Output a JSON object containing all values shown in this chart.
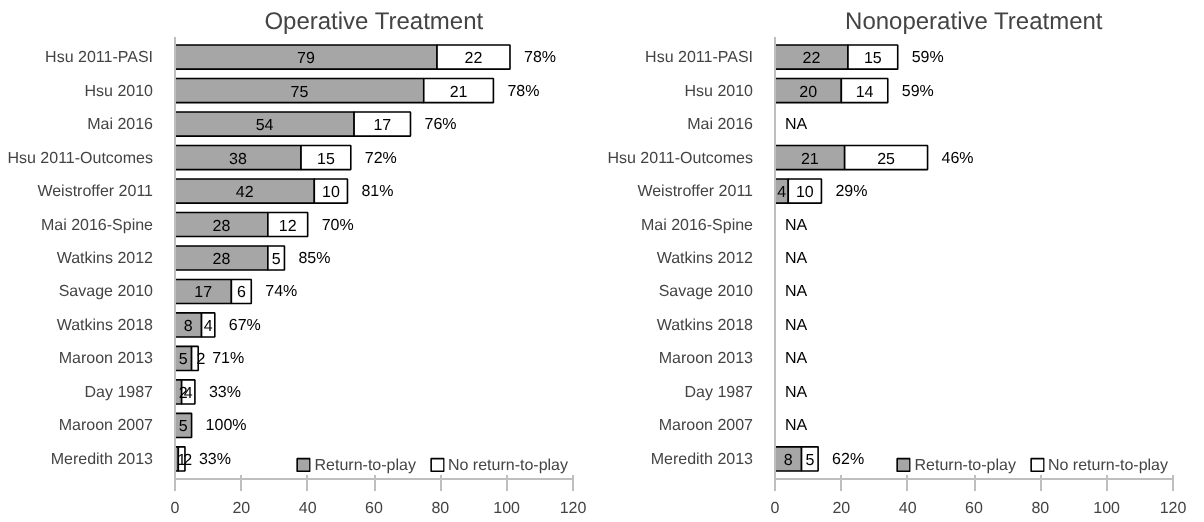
{
  "chart_data": [
    {
      "type": "bar",
      "orientation": "horizontal",
      "stacked": true,
      "title": "Operative Treatment",
      "categories": [
        "Hsu 2011-PASI",
        "Hsu 2010",
        "Mai 2016",
        "Hsu 2011-Outcomes",
        "Weistroffer 2011",
        "Mai 2016-Spine",
        "Watkins 2012",
        "Savage 2010",
        "Watkins 2018",
        "Maroon 2013",
        "Day 1987",
        "Maroon 2007",
        "Meredith 2013"
      ],
      "series": [
        {
          "name": "Return-to-play",
          "color": "#a6a6a6",
          "values": [
            79,
            75,
            54,
            38,
            42,
            28,
            28,
            17,
            8,
            5,
            2,
            5,
            1
          ],
          "value_labels": [
            "79",
            "75",
            "54",
            "38",
            "42",
            "28",
            "28",
            "17",
            "8",
            "5",
            "2",
            "5",
            "1"
          ]
        },
        {
          "name": "No return-to-play",
          "color": "#ffffff",
          "values": [
            22,
            21,
            17,
            15,
            10,
            12,
            5,
            6,
            4,
            2,
            4,
            null,
            2
          ],
          "value_labels": [
            "22",
            "21",
            "17",
            "15",
            "10",
            "12",
            "5",
            "6",
            "4",
            "2",
            "4",
            null,
            "2"
          ]
        }
      ],
      "xlim": [
        0,
        120
      ],
      "xticks": [
        0,
        20,
        40,
        60,
        80,
        100,
        120
      ],
      "legend": "bottom",
      "grid": false,
      "annotations": [
        {
          "text": "78%",
          "x": 101,
          "y": "Hsu 2011-PASI"
        },
        {
          "text": "78%",
          "x": 96,
          "y": "Hsu 2010"
        },
        {
          "text": "76%",
          "x": 71,
          "y": "Mai 2016"
        },
        {
          "text": "72%",
          "x": 53,
          "y": "Hsu 2011-Outcomes"
        },
        {
          "text": "81%",
          "x": 52,
          "y": "Weistroffer 2011"
        },
        {
          "text": "70%",
          "x": 40,
          "y": "Mai 2016-Spine"
        },
        {
          "text": "85%",
          "x": 33,
          "y": "Watkins 2012"
        },
        {
          "text": "74%",
          "x": 23,
          "y": "Savage 2010"
        },
        {
          "text": "67%",
          "x": 12,
          "y": "Watkins 2018"
        },
        {
          "text": "71%",
          "x": 7,
          "y": "Maroon 2013"
        },
        {
          "text": "33%",
          "x": 6,
          "y": "Day 1987"
        },
        {
          "text": "100%",
          "x": 5,
          "y": "Maroon 2007"
        },
        {
          "text": "33%",
          "x": 3,
          "y": "Meredith 2013"
        }
      ]
    },
    {
      "type": "bar",
      "orientation": "horizontal",
      "stacked": true,
      "title": "Nonoperative Treatment",
      "categories": [
        "Hsu 2011-PASI",
        "Hsu 2010",
        "Mai 2016",
        "Hsu 2011-Outcomes",
        "Weistroffer 2011",
        "Mai 2016-Spine",
        "Watkins 2012",
        "Savage 2010",
        "Watkins 2018",
        "Maroon 2013",
        "Day 1987",
        "Maroon 2007",
        "Meredith 2013"
      ],
      "series": [
        {
          "name": "Return-to-play",
          "color": "#a6a6a6",
          "values": [
            22,
            20,
            null,
            21,
            4,
            null,
            null,
            null,
            null,
            null,
            null,
            null,
            8
          ],
          "value_labels": [
            "22",
            "20",
            "NA",
            "21",
            "4",
            "NA",
            "NA",
            "NA",
            "NA",
            "NA",
            "NA",
            "NA",
            "8"
          ]
        },
        {
          "name": "No return-to-play",
          "color": "#ffffff",
          "values": [
            15,
            14,
            null,
            25,
            10,
            null,
            null,
            null,
            null,
            null,
            null,
            null,
            5
          ],
          "value_labels": [
            "15",
            "14",
            null,
            "25",
            "10",
            null,
            null,
            null,
            null,
            null,
            null,
            null,
            "5"
          ]
        }
      ],
      "xlim": [
        0,
        120
      ],
      "xticks": [
        0,
        20,
        40,
        60,
        80,
        100,
        120
      ],
      "legend": "bottom",
      "grid": false,
      "annotations": [
        {
          "text": "59%",
          "x": 37,
          "y": "Hsu 2011-PASI"
        },
        {
          "text": "59%",
          "x": 34,
          "y": "Hsu 2010"
        },
        {
          "text": "46%",
          "x": 46,
          "y": "Hsu 2011-Outcomes"
        },
        {
          "text": "29%",
          "x": 14,
          "y": "Weistroffer 2011"
        },
        {
          "text": "62%",
          "x": 13,
          "y": "Meredith 2013"
        }
      ]
    }
  ]
}
